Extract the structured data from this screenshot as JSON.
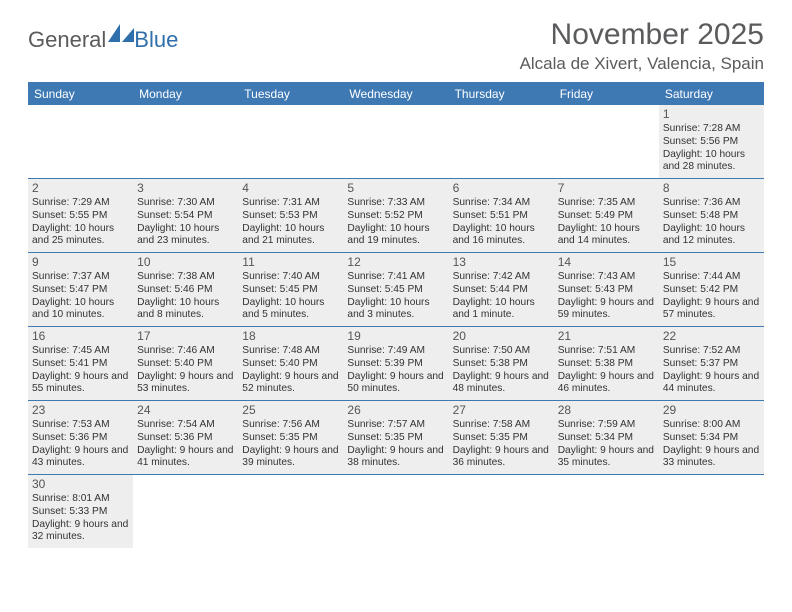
{
  "logo": {
    "text1": "General",
    "text2": "Blue"
  },
  "title": "November 2025",
  "location": "Alcala de Xivert, Valencia, Spain",
  "colors": {
    "header_bg": "#3e79b4",
    "header_text": "#ffffff",
    "cell_filled_bg": "#eeeeee",
    "cell_empty_bg": "#ffffff",
    "border": "#3e79b4",
    "title_color": "#5a5b5d",
    "body_text": "#333333"
  },
  "day_names": [
    "Sunday",
    "Monday",
    "Tuesday",
    "Wednesday",
    "Thursday",
    "Friday",
    "Saturday"
  ],
  "weeks": [
    [
      {
        "empty": true
      },
      {
        "empty": true
      },
      {
        "empty": true
      },
      {
        "empty": true
      },
      {
        "empty": true
      },
      {
        "empty": true
      },
      {
        "day": "1",
        "sunrise": "Sunrise: 7:28 AM",
        "sunset": "Sunset: 5:56 PM",
        "daylight": "Daylight: 10 hours and 28 minutes."
      }
    ],
    [
      {
        "day": "2",
        "sunrise": "Sunrise: 7:29 AM",
        "sunset": "Sunset: 5:55 PM",
        "daylight": "Daylight: 10 hours and 25 minutes."
      },
      {
        "day": "3",
        "sunrise": "Sunrise: 7:30 AM",
        "sunset": "Sunset: 5:54 PM",
        "daylight": "Daylight: 10 hours and 23 minutes."
      },
      {
        "day": "4",
        "sunrise": "Sunrise: 7:31 AM",
        "sunset": "Sunset: 5:53 PM",
        "daylight": "Daylight: 10 hours and 21 minutes."
      },
      {
        "day": "5",
        "sunrise": "Sunrise: 7:33 AM",
        "sunset": "Sunset: 5:52 PM",
        "daylight": "Daylight: 10 hours and 19 minutes."
      },
      {
        "day": "6",
        "sunrise": "Sunrise: 7:34 AM",
        "sunset": "Sunset: 5:51 PM",
        "daylight": "Daylight: 10 hours and 16 minutes."
      },
      {
        "day": "7",
        "sunrise": "Sunrise: 7:35 AM",
        "sunset": "Sunset: 5:49 PM",
        "daylight": "Daylight: 10 hours and 14 minutes."
      },
      {
        "day": "8",
        "sunrise": "Sunrise: 7:36 AM",
        "sunset": "Sunset: 5:48 PM",
        "daylight": "Daylight: 10 hours and 12 minutes."
      }
    ],
    [
      {
        "day": "9",
        "sunrise": "Sunrise: 7:37 AM",
        "sunset": "Sunset: 5:47 PM",
        "daylight": "Daylight: 10 hours and 10 minutes."
      },
      {
        "day": "10",
        "sunrise": "Sunrise: 7:38 AM",
        "sunset": "Sunset: 5:46 PM",
        "daylight": "Daylight: 10 hours and 8 minutes."
      },
      {
        "day": "11",
        "sunrise": "Sunrise: 7:40 AM",
        "sunset": "Sunset: 5:45 PM",
        "daylight": "Daylight: 10 hours and 5 minutes."
      },
      {
        "day": "12",
        "sunrise": "Sunrise: 7:41 AM",
        "sunset": "Sunset: 5:45 PM",
        "daylight": "Daylight: 10 hours and 3 minutes."
      },
      {
        "day": "13",
        "sunrise": "Sunrise: 7:42 AM",
        "sunset": "Sunset: 5:44 PM",
        "daylight": "Daylight: 10 hours and 1 minute."
      },
      {
        "day": "14",
        "sunrise": "Sunrise: 7:43 AM",
        "sunset": "Sunset: 5:43 PM",
        "daylight": "Daylight: 9 hours and 59 minutes."
      },
      {
        "day": "15",
        "sunrise": "Sunrise: 7:44 AM",
        "sunset": "Sunset: 5:42 PM",
        "daylight": "Daylight: 9 hours and 57 minutes."
      }
    ],
    [
      {
        "day": "16",
        "sunrise": "Sunrise: 7:45 AM",
        "sunset": "Sunset: 5:41 PM",
        "daylight": "Daylight: 9 hours and 55 minutes."
      },
      {
        "day": "17",
        "sunrise": "Sunrise: 7:46 AM",
        "sunset": "Sunset: 5:40 PM",
        "daylight": "Daylight: 9 hours and 53 minutes."
      },
      {
        "day": "18",
        "sunrise": "Sunrise: 7:48 AM",
        "sunset": "Sunset: 5:40 PM",
        "daylight": "Daylight: 9 hours and 52 minutes."
      },
      {
        "day": "19",
        "sunrise": "Sunrise: 7:49 AM",
        "sunset": "Sunset: 5:39 PM",
        "daylight": "Daylight: 9 hours and 50 minutes."
      },
      {
        "day": "20",
        "sunrise": "Sunrise: 7:50 AM",
        "sunset": "Sunset: 5:38 PM",
        "daylight": "Daylight: 9 hours and 48 minutes."
      },
      {
        "day": "21",
        "sunrise": "Sunrise: 7:51 AM",
        "sunset": "Sunset: 5:38 PM",
        "daylight": "Daylight: 9 hours and 46 minutes."
      },
      {
        "day": "22",
        "sunrise": "Sunrise: 7:52 AM",
        "sunset": "Sunset: 5:37 PM",
        "daylight": "Daylight: 9 hours and 44 minutes."
      }
    ],
    [
      {
        "day": "23",
        "sunrise": "Sunrise: 7:53 AM",
        "sunset": "Sunset: 5:36 PM",
        "daylight": "Daylight: 9 hours and 43 minutes."
      },
      {
        "day": "24",
        "sunrise": "Sunrise: 7:54 AM",
        "sunset": "Sunset: 5:36 PM",
        "daylight": "Daylight: 9 hours and 41 minutes."
      },
      {
        "day": "25",
        "sunrise": "Sunrise: 7:56 AM",
        "sunset": "Sunset: 5:35 PM",
        "daylight": "Daylight: 9 hours and 39 minutes."
      },
      {
        "day": "26",
        "sunrise": "Sunrise: 7:57 AM",
        "sunset": "Sunset: 5:35 PM",
        "daylight": "Daylight: 9 hours and 38 minutes."
      },
      {
        "day": "27",
        "sunrise": "Sunrise: 7:58 AM",
        "sunset": "Sunset: 5:35 PM",
        "daylight": "Daylight: 9 hours and 36 minutes."
      },
      {
        "day": "28",
        "sunrise": "Sunrise: 7:59 AM",
        "sunset": "Sunset: 5:34 PM",
        "daylight": "Daylight: 9 hours and 35 minutes."
      },
      {
        "day": "29",
        "sunrise": "Sunrise: 8:00 AM",
        "sunset": "Sunset: 5:34 PM",
        "daylight": "Daylight: 9 hours and 33 minutes."
      }
    ],
    [
      {
        "day": "30",
        "sunrise": "Sunrise: 8:01 AM",
        "sunset": "Sunset: 5:33 PM",
        "daylight": "Daylight: 9 hours and 32 minutes."
      },
      {
        "empty": true
      },
      {
        "empty": true
      },
      {
        "empty": true
      },
      {
        "empty": true
      },
      {
        "empty": true
      },
      {
        "empty": true
      }
    ]
  ]
}
